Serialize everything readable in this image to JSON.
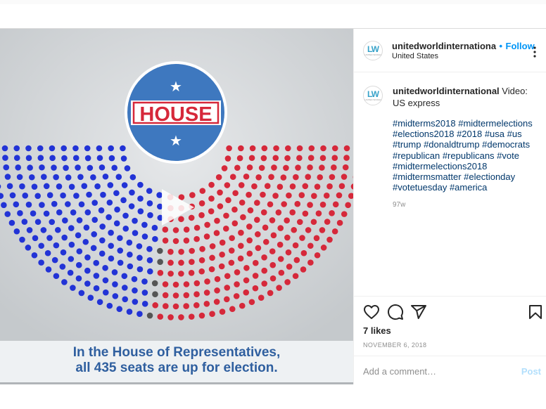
{
  "post": {
    "media": {
      "house_label": "HOUSE",
      "caption_line1": "In the House of Representatives,",
      "caption_line2": "all 435 seats are up for election.",
      "seat_counts": {
        "democrat": 195,
        "vacant": 5,
        "republican": 235
      },
      "colors": {
        "democrat": "#2233d6",
        "republican": "#d6283a",
        "vacant": "#555555",
        "badge": "#3e78bf"
      },
      "play_icon": "play-icon"
    },
    "header": {
      "avatar_mark": "LW",
      "avatar_sub": "UNITED WORLD",
      "username": "unitedworldinternationa",
      "separator": "•",
      "follow_label": "Follow",
      "location": "United States",
      "more_icon": "more-options-icon"
    },
    "caption": {
      "username": "unitedworldinternational",
      "text": "Video: US express",
      "hashtags_lines": [
        "#midterms2018 #midtermelections",
        "#elections2018 #2018 #usa #us",
        "#trump #donaldtrump #democrats",
        "#republican #republicans #vote",
        "#midtermelections2018",
        "#midtermsmatter #electionday",
        "#votetuesday #america"
      ],
      "time_ago": "97w"
    },
    "actions": {
      "like_icon": "heart-icon",
      "comment_icon": "comment-icon",
      "share_icon": "share-icon",
      "save_icon": "bookmark-icon",
      "likes_text": "7 likes",
      "date": "NOVEMBER 6, 2018"
    },
    "comment": {
      "placeholder": "Add a comment…",
      "post_label": "Post"
    }
  }
}
